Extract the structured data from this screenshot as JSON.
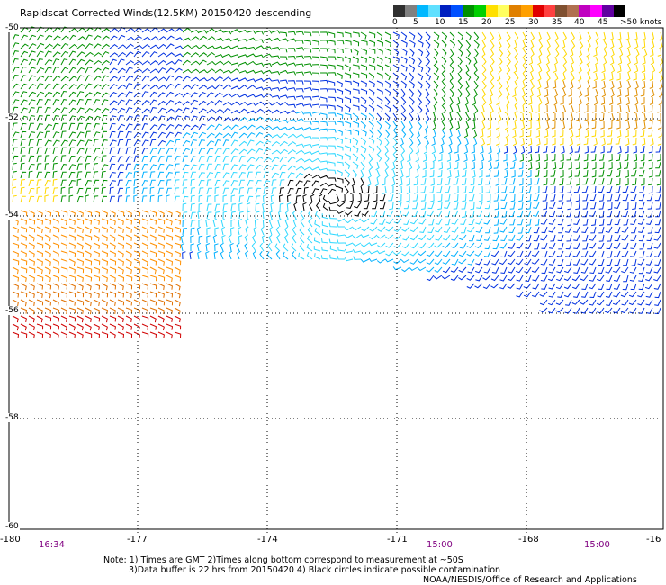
{
  "title": "Rapidscat Corrected Winds(12.5KM) 20150420 descending",
  "legend": {
    "labels": [
      "0",
      "5",
      "10",
      "15",
      "20",
      "25",
      "30",
      "35",
      "40",
      "45",
      ">50 knots"
    ],
    "colors": [
      "#303030",
      "#808080",
      "#00b8ff",
      "#60e0ff",
      "#0020c0",
      "#0050ff",
      "#009000",
      "#00d000",
      "#ffe000",
      "#ffff60",
      "#e08000",
      "#ffa000",
      "#e00000",
      "#ff4040",
      "#805030",
      "#b07050",
      "#c000c0",
      "#ff00ff",
      "#6000a0",
      "#000000"
    ]
  },
  "axes": {
    "lon_labels": [
      "-180",
      "-177",
      "-174",
      "-171",
      "-168",
      "-16"
    ],
    "lat_labels": [
      "-50",
      "-52",
      "-54",
      "-56",
      "-58",
      "-60"
    ],
    "time_labels": [
      "16:34",
      "15:00",
      "15:00"
    ]
  },
  "notes": {
    "line1": "Note: 1) Times are GMT 2)Times along bottom correspond to measurement at ~50S",
    "line2": "3)Data buffer is 22 hrs from 20150420 4) Black circles indicate possible contamination",
    "line3": "NOAA/NESDIS/Office of Research and Applications"
  }
}
